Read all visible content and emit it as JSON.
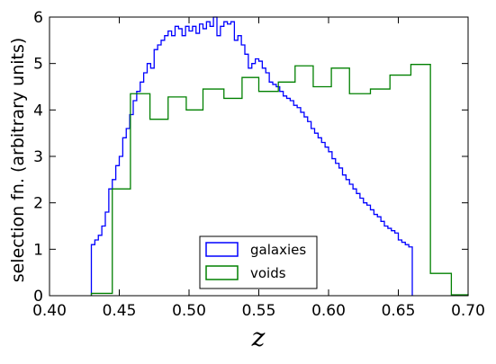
{
  "chart_data": {
    "type": "line",
    "step": true,
    "xlabel": "z",
    "ylabel": "selection fn. (arbitrary units)",
    "xlim": [
      0.4,
      0.7
    ],
    "ylim": [
      0,
      6
    ],
    "xticks": [
      "0.40",
      "0.45",
      "0.50",
      "0.55",
      "0.60",
      "0.65",
      "0.70"
    ],
    "yticks": [
      "0",
      "1",
      "2",
      "3",
      "4",
      "5",
      "6"
    ],
    "legend_position": "bottom-center",
    "grid": false,
    "series": [
      {
        "name": "galaxies",
        "color": "#0000ff",
        "bin_width": 0.0025,
        "bins_start": 0.43,
        "values": [
          1.1,
          1.2,
          1.3,
          1.5,
          1.8,
          2.3,
          2.5,
          2.8,
          3.0,
          3.4,
          3.6,
          3.9,
          4.2,
          4.4,
          4.6,
          4.8,
          5.0,
          4.9,
          5.3,
          5.4,
          5.5,
          5.6,
          5.7,
          5.6,
          5.8,
          5.75,
          5.6,
          5.8,
          5.7,
          5.8,
          5.65,
          5.85,
          5.75,
          5.9,
          5.8,
          6.0,
          5.6,
          5.8,
          5.9,
          5.85,
          5.9,
          5.5,
          5.6,
          5.4,
          5.2,
          4.9,
          5.0,
          5.1,
          5.05,
          4.9,
          4.8,
          4.6,
          4.55,
          4.5,
          4.4,
          4.3,
          4.25,
          4.2,
          4.1,
          4.05,
          3.95,
          3.85,
          3.75,
          3.6,
          3.5,
          3.4,
          3.3,
          3.2,
          3.1,
          2.95,
          2.85,
          2.75,
          2.6,
          2.5,
          2.4,
          2.3,
          2.2,
          2.1,
          2.0,
          1.95,
          1.85,
          1.75,
          1.7,
          1.6,
          1.5,
          1.45,
          1.4,
          1.35,
          1.2,
          1.15,
          1.1,
          1.05
        ]
      },
      {
        "name": "voids",
        "color": "#008000",
        "edges": [
          0.43,
          0.445,
          0.458,
          0.472,
          0.485,
          0.498,
          0.51,
          0.525,
          0.538,
          0.55,
          0.564,
          0.576,
          0.589,
          0.602,
          0.615,
          0.63,
          0.644,
          0.659,
          0.673,
          0.688,
          0.7
        ],
        "values": [
          0.05,
          2.3,
          4.35,
          3.8,
          4.28,
          4.0,
          4.45,
          4.25,
          4.7,
          4.4,
          4.6,
          4.95,
          4.5,
          4.9,
          4.35,
          4.45,
          4.75,
          4.98,
          0.48,
          0.02
        ]
      }
    ]
  }
}
